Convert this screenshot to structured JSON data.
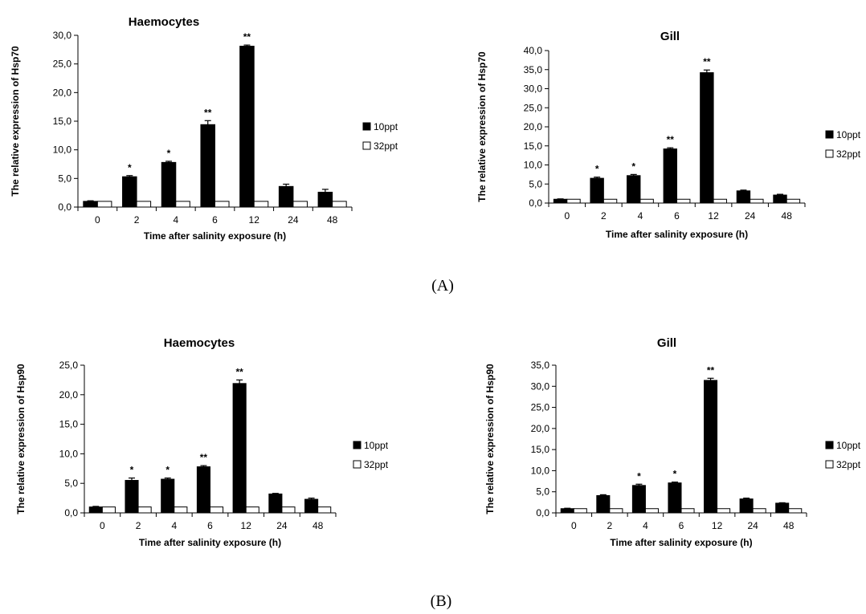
{
  "panel_labels": {
    "a": "(A)",
    "b": "(B)"
  },
  "colors": {
    "series_10ppt": "#000000",
    "series_32ppt": "#ffffff",
    "outline": "#000000"
  },
  "chart_data": [
    {
      "id": "a-haemocytes",
      "type": "bar",
      "title": "Haemocytes",
      "xlabel": "Time after salinity exposure (h)",
      "ylabel": "The relative expression of Hsp70",
      "categories": [
        "0",
        "2",
        "4",
        "6",
        "12",
        "24",
        "48"
      ],
      "ylim": [
        0,
        30
      ],
      "yticks": [
        0,
        5,
        10,
        15,
        20,
        25,
        30
      ],
      "ytick_labels": [
        "0,0",
        "5,0",
        "10,0",
        "15,0",
        "20,0",
        "25,0",
        "30,0"
      ],
      "legend_position": "right",
      "series": [
        {
          "name": "10ppt",
          "values": [
            1.0,
            5.3,
            7.8,
            14.4,
            28.1,
            3.6,
            2.6
          ],
          "errors": [
            0.1,
            0.2,
            0.2,
            0.7,
            0.2,
            0.4,
            0.5
          ],
          "significance": [
            "",
            "*",
            "*",
            "**",
            "**",
            "",
            ""
          ]
        },
        {
          "name": "32ppt",
          "values": [
            1.0,
            1.0,
            1.0,
            1.0,
            1.0,
            1.0,
            1.0
          ]
        }
      ]
    },
    {
      "id": "a-gill",
      "type": "bar",
      "title": "Gill",
      "xlabel": "Time after salinity exposure (h)",
      "ylabel": "The relative expression of Hsp70",
      "categories": [
        "0",
        "2",
        "4",
        "6",
        "12",
        "24",
        "48"
      ],
      "ylim": [
        0,
        40
      ],
      "yticks": [
        0,
        5,
        10,
        15,
        20,
        25,
        30,
        35,
        40
      ],
      "ytick_labels": [
        "0,0",
        "5,0",
        "10,0",
        "15,0",
        "20,0",
        "25,0",
        "30,0",
        "35,0",
        "40,0"
      ],
      "legend_position": "right",
      "series": [
        {
          "name": "10ppt",
          "values": [
            1.0,
            6.5,
            7.2,
            14.2,
            34.2,
            3.2,
            2.1
          ],
          "errors": [
            0.1,
            0.3,
            0.3,
            0.3,
            0.7,
            0.2,
            0.2
          ],
          "significance": [
            "",
            "*",
            "*",
            "**",
            "**",
            "",
            ""
          ]
        },
        {
          "name": "32ppt",
          "values": [
            1.0,
            1.0,
            1.0,
            1.0,
            1.0,
            1.0,
            1.0
          ]
        }
      ]
    },
    {
      "id": "b-haemocytes",
      "type": "bar",
      "title": "Haemocytes",
      "xlabel": "Time after salinity exposure (h)",
      "ylabel": "The relative expression of Hsp90",
      "categories": [
        "0",
        "2",
        "4",
        "6",
        "12",
        "24",
        "48"
      ],
      "ylim": [
        0,
        25
      ],
      "yticks": [
        0,
        5,
        10,
        15,
        20,
        25
      ],
      "ytick_labels": [
        "0,0",
        "5,0",
        "10,0",
        "15,0",
        "20,0",
        "25,0"
      ],
      "legend_position": "right",
      "series": [
        {
          "name": "10ppt",
          "values": [
            1.0,
            5.5,
            5.7,
            7.8,
            21.9,
            3.2,
            2.3
          ],
          "errors": [
            0.1,
            0.4,
            0.2,
            0.2,
            0.6,
            0.1,
            0.2
          ],
          "significance": [
            "",
            "*",
            "*",
            "**",
            "**",
            "",
            ""
          ]
        },
        {
          "name": "32ppt",
          "values": [
            1.0,
            1.0,
            1.0,
            1.0,
            1.0,
            1.0,
            1.0
          ]
        }
      ]
    },
    {
      "id": "b-gill",
      "type": "bar",
      "title": "Gill",
      "xlabel": "Time after salinity exposure (h)",
      "ylabel": "The relative expression of Hsp90",
      "categories": [
        "0",
        "2",
        "4",
        "6",
        "12",
        "24",
        "48"
      ],
      "ylim": [
        0,
        35
      ],
      "yticks": [
        0,
        5,
        10,
        15,
        20,
        25,
        30,
        35
      ],
      "ytick_labels": [
        "0,0",
        "5,0",
        "10,0",
        "15,0",
        "20,0",
        "25,0",
        "30,0",
        "35,0"
      ],
      "legend_position": "right",
      "series": [
        {
          "name": "10ppt",
          "values": [
            1.0,
            4.1,
            6.5,
            7.1,
            31.4,
            3.3,
            2.3
          ],
          "errors": [
            0.1,
            0.2,
            0.3,
            0.2,
            0.5,
            0.2,
            0.1
          ],
          "significance": [
            "",
            "",
            "*",
            "*",
            "**",
            "",
            ""
          ]
        },
        {
          "name": "32ppt",
          "values": [
            1.0,
            1.0,
            1.0,
            1.0,
            1.0,
            1.0,
            1.0
          ]
        }
      ]
    }
  ]
}
